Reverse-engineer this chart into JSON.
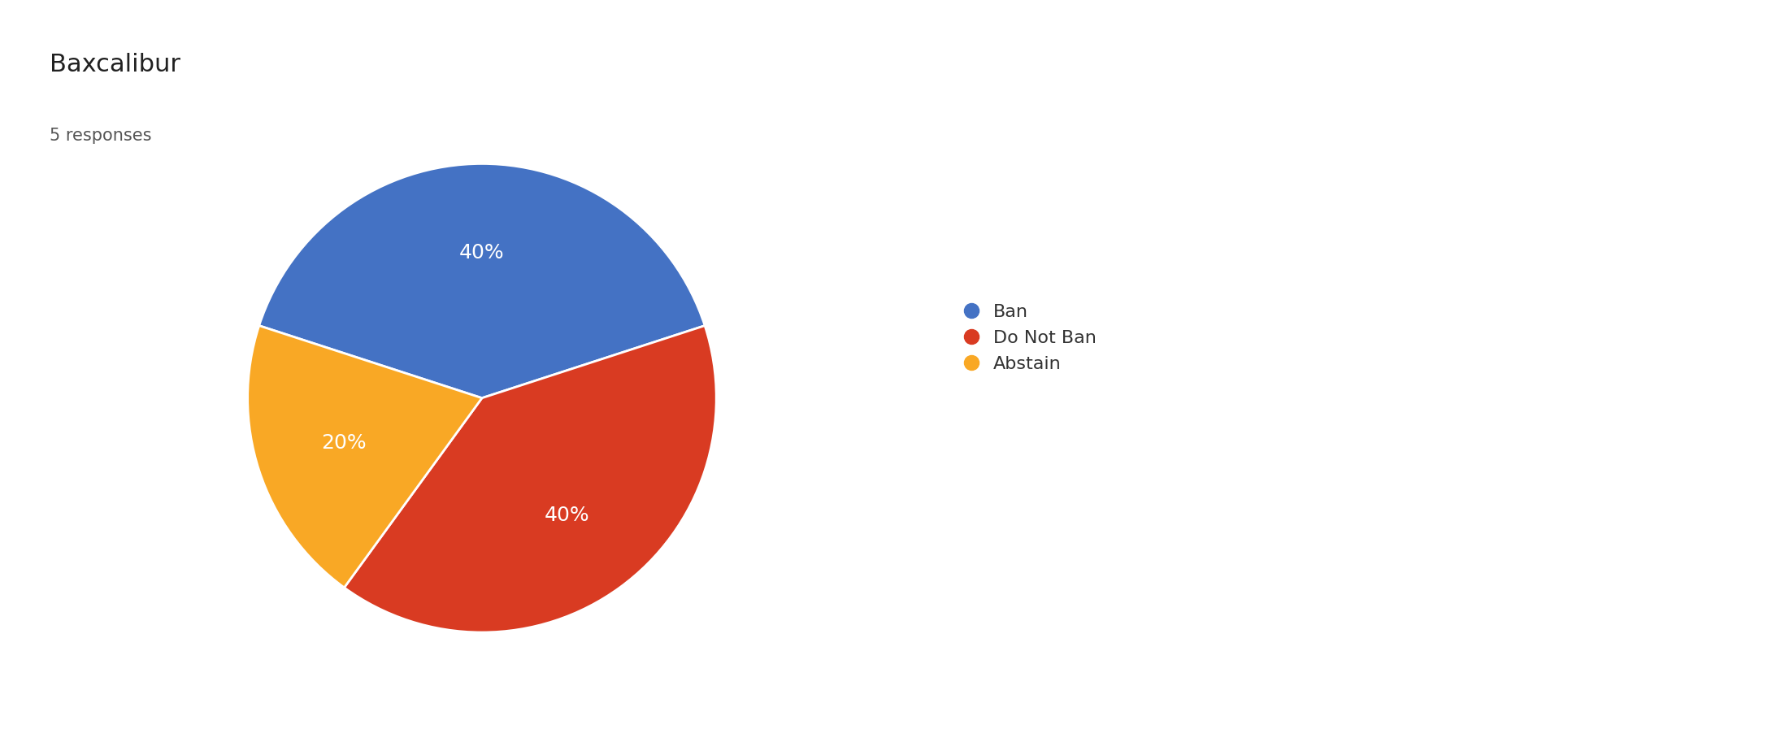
{
  "title": "Baxcalibur",
  "subtitle": "5 responses",
  "labels": [
    "Ban",
    "Do Not Ban",
    "Abstain"
  ],
  "values": [
    40,
    40,
    20
  ],
  "colors": [
    "#4472C4",
    "#D93B22",
    "#F9A825"
  ],
  "text_color": "#FFFFFF",
  "pct_labels": [
    "40%",
    "40%",
    "20%"
  ],
  "background_color": "#FFFFFF",
  "title_fontsize": 22,
  "subtitle_fontsize": 15,
  "legend_fontsize": 16,
  "pct_fontsize": 18,
  "startangle": 162
}
